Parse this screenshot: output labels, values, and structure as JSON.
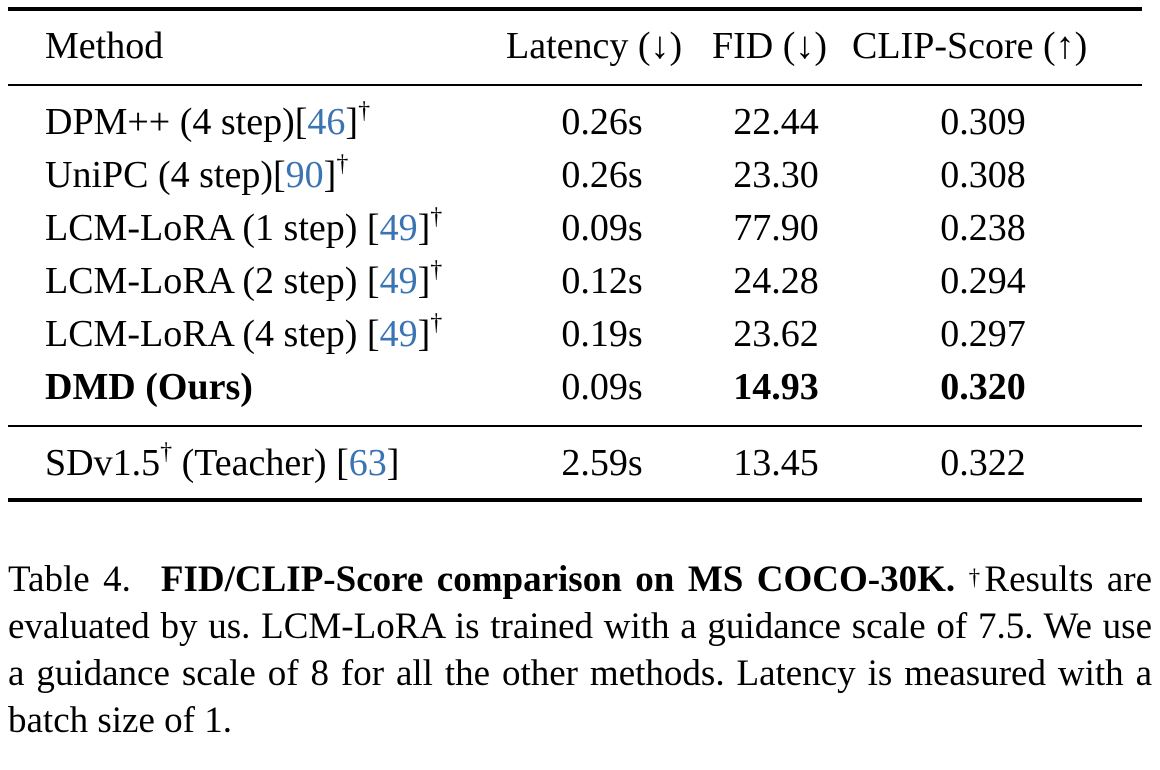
{
  "header": {
    "method": "Method",
    "latency": "Latency (↓)",
    "fid": "FID (↓)",
    "clip": "CLIP-Score (↑)"
  },
  "rows": [
    {
      "name": "DPM++ (4 step)[",
      "cite": "46",
      "close": "]",
      "dagger": "†",
      "latency": "0.26s",
      "fid": "22.44",
      "clip": "0.309"
    },
    {
      "name": "UniPC (4 step)[",
      "cite": "90",
      "close": "]",
      "dagger": "†",
      "latency": "0.26s",
      "fid": "23.30",
      "clip": "0.308"
    },
    {
      "name": "LCM-LoRA (1 step) [",
      "cite": "49",
      "close": "]",
      "dagger": "†",
      "latency": "0.09s",
      "fid": "77.90",
      "clip": "0.238"
    },
    {
      "name": "LCM-LoRA (2 step) [",
      "cite": "49",
      "close": "]",
      "dagger": "†",
      "latency": "0.12s",
      "fid": "24.28",
      "clip": "0.294"
    },
    {
      "name": "LCM-LoRA (4 step) [",
      "cite": "49",
      "close": "]",
      "dagger": "†",
      "latency": "0.19s",
      "fid": "23.62",
      "clip": "0.297"
    },
    {
      "name": "DMD (Ours)",
      "latency": "0.09s",
      "fid": "14.93",
      "clip": "0.320"
    }
  ],
  "teacher": {
    "name": "SDv1.5",
    "dagger": "†",
    "mid": " (Teacher) [",
    "cite": "63",
    "close": "]",
    "latency": "2.59s",
    "fid": "13.45",
    "clip": "0.322"
  },
  "caption": {
    "number": "Table 4.",
    "title": "FID/CLIP-Score comparison on MS COCO-30K.",
    "dagger": "†",
    "body": "Results are evaluated by us. LCM-LoRA is trained with a guidance scale of 7.5.  We use a guidance scale of 8 for all the other methods. Latency is measured with a batch size of 1."
  },
  "colors": {
    "citation_link": "#3a74b3",
    "text": "#000000"
  }
}
